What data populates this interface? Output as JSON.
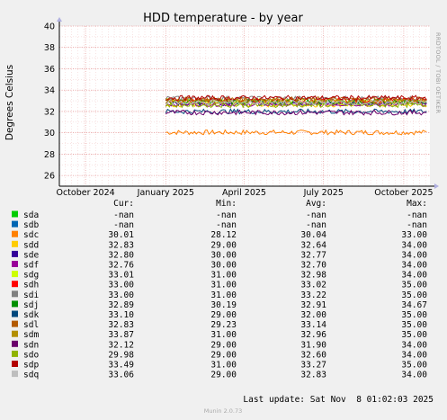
{
  "chart_data": {
    "type": "line",
    "title": "HDD temperature - by year",
    "ylabel": "Degrees Celsius",
    "ylim": [
      25,
      40
    ],
    "yticks": [
      26,
      28,
      30,
      32,
      34,
      36,
      38,
      40
    ],
    "xlim": [
      "2024-09-01",
      "2025-10-31"
    ],
    "xticks": [
      {
        "label": "October 2024",
        "date": "2024-10-01"
      },
      {
        "label": "January 2025",
        "date": "2025-01-01"
      },
      {
        "label": "April 2025",
        "date": "2025-04-01"
      },
      {
        "label": "July 2025",
        "date": "2025-07-01"
      },
      {
        "label": "October 2025",
        "date": "2025-10-01"
      }
    ],
    "grid": true,
    "data_start": "2025-01-01",
    "columns": [
      "Cur:",
      "Min:",
      "Avg:",
      "Max:"
    ],
    "series": [
      {
        "name": "sda",
        "color": "#00cc00",
        "cur": "-nan",
        "min": "-nan",
        "avg": "-nan",
        "max": "-nan"
      },
      {
        "name": "sdb",
        "color": "#0066b3",
        "cur": "-nan",
        "min": "-nan",
        "avg": "-nan",
        "max": "-nan"
      },
      {
        "name": "sdc",
        "color": "#ff8000",
        "cur": "30.01",
        "min": "28.12",
        "avg": "30.04",
        "max": "33.00"
      },
      {
        "name": "sdd",
        "color": "#ffcc00",
        "cur": "32.83",
        "min": "29.00",
        "avg": "32.64",
        "max": "34.00"
      },
      {
        "name": "sde",
        "color": "#330099",
        "cur": "32.80",
        "min": "30.00",
        "avg": "32.77",
        "max": "34.00"
      },
      {
        "name": "sdf",
        "color": "#990099",
        "cur": "32.76",
        "min": "30.00",
        "avg": "32.70",
        "max": "34.00"
      },
      {
        "name": "sdg",
        "color": "#ccff00",
        "cur": "33.01",
        "min": "31.00",
        "avg": "32.98",
        "max": "34.00"
      },
      {
        "name": "sdh",
        "color": "#ff0000",
        "cur": "33.00",
        "min": "31.00",
        "avg": "33.02",
        "max": "35.00"
      },
      {
        "name": "sdi",
        "color": "#808080",
        "cur": "33.00",
        "min": "31.00",
        "avg": "33.22",
        "max": "35.00"
      },
      {
        "name": "sdj",
        "color": "#008f00",
        "cur": "32.89",
        "min": "30.19",
        "avg": "32.91",
        "max": "34.67"
      },
      {
        "name": "sdk",
        "color": "#00487d",
        "cur": "33.10",
        "min": "29.00",
        "avg": "32.00",
        "max": "35.00"
      },
      {
        "name": "sdl",
        "color": "#b35a00",
        "cur": "32.83",
        "min": "29.23",
        "avg": "33.14",
        "max": "35.00"
      },
      {
        "name": "sdm",
        "color": "#b38f00",
        "cur": "33.87",
        "min": "31.00",
        "avg": "32.96",
        "max": "35.00"
      },
      {
        "name": "sdn",
        "color": "#6b006b",
        "cur": "32.12",
        "min": "29.00",
        "avg": "31.90",
        "max": "34.00"
      },
      {
        "name": "sdo",
        "color": "#8fb300",
        "cur": "29.98",
        "min": "29.00",
        "avg": "32.60",
        "max": "34.00"
      },
      {
        "name": "sdp",
        "color": "#b30000",
        "cur": "33.49",
        "min": "31.00",
        "avg": "33.27",
        "max": "35.00"
      },
      {
        "name": "sdq",
        "color": "#bebebe",
        "cur": "33.06",
        "min": "29.00",
        "avg": "32.83",
        "max": "34.00"
      }
    ]
  },
  "footer": {
    "last_update": "Last update: Sat Nov  8 01:02:03 2025",
    "tool": "RRDTOOL / TOBI OETIKER",
    "version": "Munin 2.0.73"
  }
}
